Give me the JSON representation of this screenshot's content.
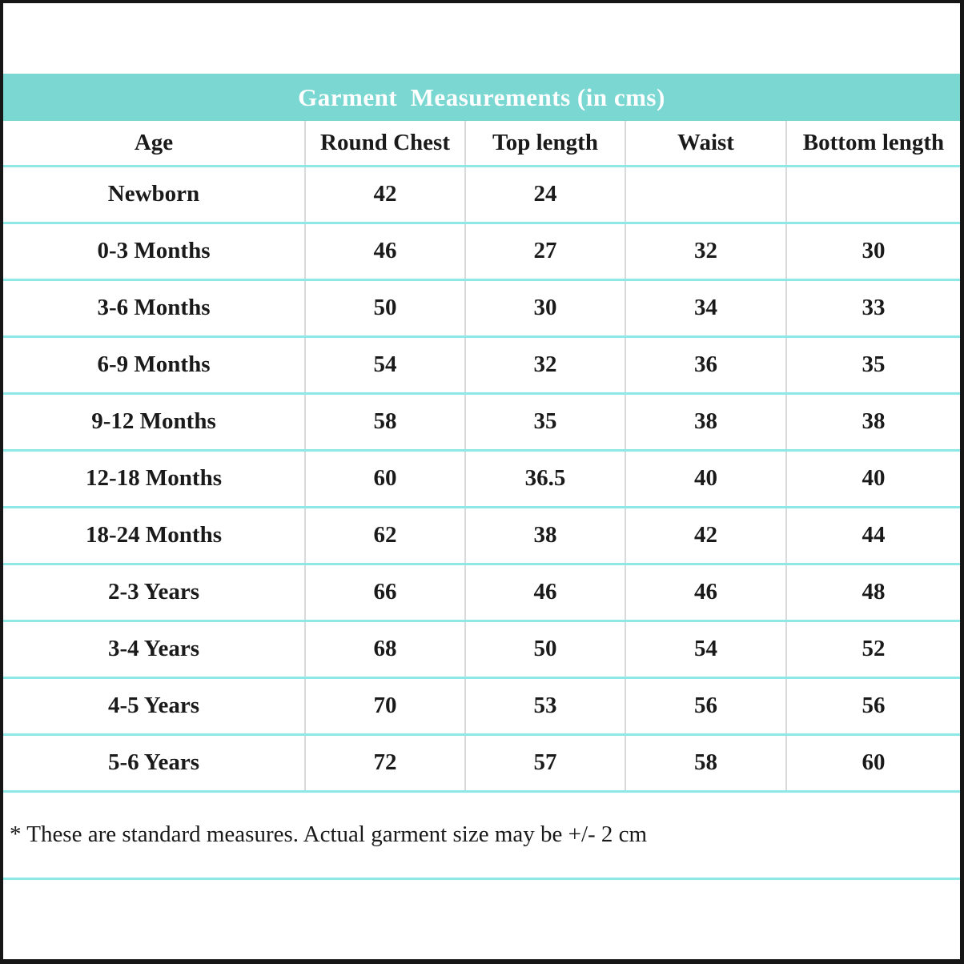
{
  "title": "Garment  Measurements (in cms)",
  "columns": [
    "Age",
    "Round Chest",
    "Top length",
    "Waist",
    "Bottom length"
  ],
  "rows": [
    [
      "Newborn",
      "42",
      "24",
      "",
      ""
    ],
    [
      "0-3 Months",
      "46",
      "27",
      "32",
      "30"
    ],
    [
      "3-6 Months",
      "50",
      "30",
      "34",
      "33"
    ],
    [
      "6-9 Months",
      "54",
      "32",
      "36",
      "35"
    ],
    [
      "9-12 Months",
      "58",
      "35",
      "38",
      "38"
    ],
    [
      "12-18 Months",
      "60",
      "36.5",
      "40",
      "40"
    ],
    [
      "18-24 Months",
      "62",
      "38",
      "42",
      "44"
    ],
    [
      "2-3 Years",
      "66",
      "46",
      "46",
      "48"
    ],
    [
      "3-4 Years",
      "68",
      "50",
      "54",
      "52"
    ],
    [
      "4-5 Years",
      "70",
      "53",
      "56",
      "56"
    ],
    [
      "5-6 Years",
      "72",
      "57",
      "58",
      "60"
    ]
  ],
  "footnote": "* These are standard measures. Actual garment size may be +/- 2 cm",
  "colors": {
    "title_band": "#7bd7d2",
    "row_separator": "#8fe8e8",
    "column_separator": "#d9d9d9",
    "text": "#1a1a1a",
    "frame_border": "#161616"
  }
}
